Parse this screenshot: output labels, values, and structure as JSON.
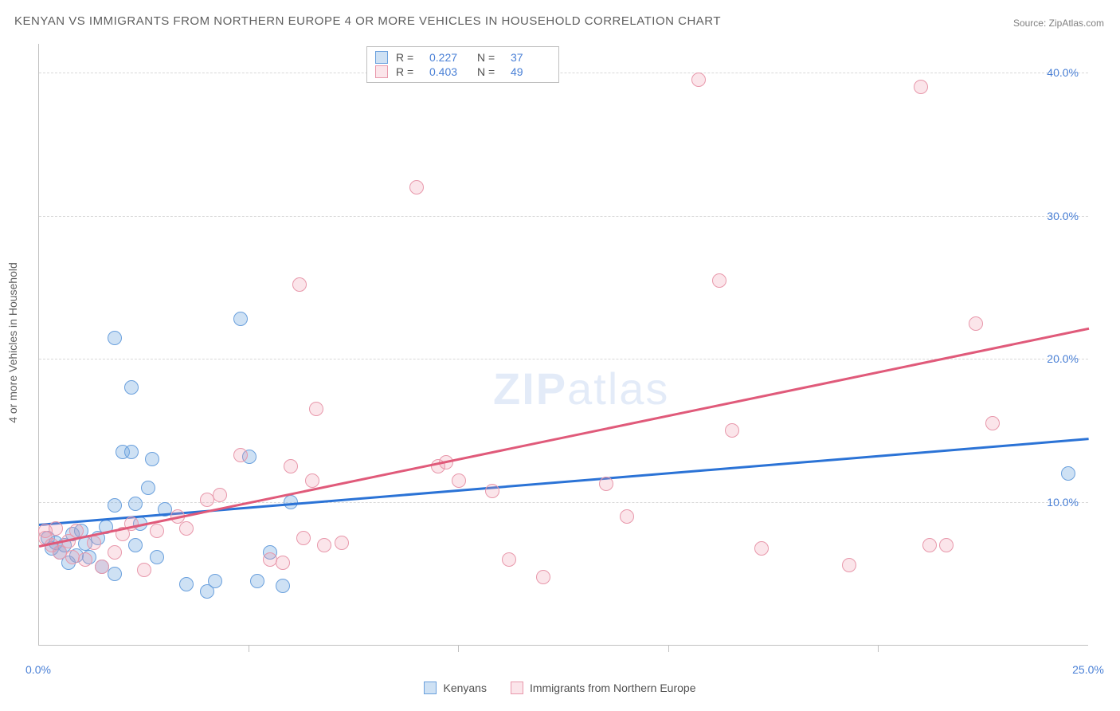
{
  "title": "KENYAN VS IMMIGRANTS FROM NORTHERN EUROPE 4 OR MORE VEHICLES IN HOUSEHOLD CORRELATION CHART",
  "source": "Source: ZipAtlas.com",
  "ylabel": "4 or more Vehicles in Household",
  "watermark_a": "ZIP",
  "watermark_b": "atlas",
  "colors": {
    "blue_fill": "rgba(116,168,224,0.35)",
    "blue_stroke": "#6aa0dd",
    "pink_fill": "rgba(240,150,170,0.25)",
    "pink_stroke": "#e898ab",
    "blue_line": "#2b73d6",
    "pink_line": "#e05a7a",
    "tick_text": "#4a80d6"
  },
  "chart": {
    "xlim": [
      0,
      25
    ],
    "ylim": [
      0,
      42
    ],
    "yticks": [
      {
        "v": 10,
        "label": "10.0%"
      },
      {
        "v": 20,
        "label": "20.0%"
      },
      {
        "v": 30,
        "label": "30.0%"
      },
      {
        "v": 40,
        "label": "40.0%"
      }
    ],
    "xticks_major": [
      {
        "v": 0,
        "label": "0.0%"
      },
      {
        "v": 25,
        "label": "25.0%"
      }
    ],
    "xtick_marks": [
      5,
      10,
      15,
      20
    ],
    "grid_color": "#d8d8d8"
  },
  "series": [
    {
      "name": "Kenyans",
      "color_fill_key": "blue_fill",
      "color_stroke_key": "blue_stroke",
      "R": "0.227",
      "N": "37",
      "trend": {
        "x1": 0,
        "y1": 8.5,
        "x2": 25,
        "y2": 14.5,
        "color_key": "blue_line"
      },
      "points": [
        [
          0.2,
          7.5
        ],
        [
          0.3,
          6.8
        ],
        [
          0.4,
          7.2
        ],
        [
          0.5,
          6.5
        ],
        [
          0.6,
          7.0
        ],
        [
          0.7,
          5.8
        ],
        [
          0.8,
          7.8
        ],
        [
          0.9,
          6.3
        ],
        [
          1.0,
          8.0
        ],
        [
          1.1,
          7.1
        ],
        [
          1.2,
          6.2
        ],
        [
          1.4,
          7.5
        ],
        [
          1.5,
          5.5
        ],
        [
          1.6,
          8.3
        ],
        [
          1.8,
          5.0
        ],
        [
          1.8,
          9.8
        ],
        [
          1.8,
          21.5
        ],
        [
          2.0,
          13.5
        ],
        [
          2.2,
          18.0
        ],
        [
          2.2,
          13.5
        ],
        [
          2.3,
          9.9
        ],
        [
          2.3,
          7.0
        ],
        [
          2.4,
          8.5
        ],
        [
          2.6,
          11.0
        ],
        [
          2.7,
          13.0
        ],
        [
          2.8,
          6.2
        ],
        [
          3.0,
          9.5
        ],
        [
          3.5,
          4.3
        ],
        [
          4.0,
          3.8
        ],
        [
          4.2,
          4.5
        ],
        [
          4.8,
          22.8
        ],
        [
          5.0,
          13.2
        ],
        [
          5.2,
          4.5
        ],
        [
          5.5,
          6.5
        ],
        [
          5.8,
          4.2
        ],
        [
          6.0,
          10.0
        ],
        [
          24.5,
          12.0
        ]
      ]
    },
    {
      "name": "Immigrants from Northern Europe",
      "color_fill_key": "pink_fill",
      "color_stroke_key": "pink_stroke",
      "R": "0.403",
      "N": "49",
      "trend": {
        "x1": 0,
        "y1": 7.0,
        "x2": 25,
        "y2": 22.2,
        "color_key": "pink_line"
      },
      "points": [
        [
          0.15,
          7.5
        ],
        [
          0.15,
          8.0
        ],
        [
          0.3,
          7.0
        ],
        [
          0.4,
          8.2
        ],
        [
          0.5,
          6.5
        ],
        [
          0.7,
          7.3
        ],
        [
          0.8,
          6.2
        ],
        [
          0.9,
          8.0
        ],
        [
          1.1,
          6.0
        ],
        [
          1.3,
          7.2
        ],
        [
          1.5,
          5.5
        ],
        [
          1.8,
          6.5
        ],
        [
          2.0,
          7.8
        ],
        [
          2.2,
          8.5
        ],
        [
          2.5,
          5.3
        ],
        [
          2.8,
          8.0
        ],
        [
          3.3,
          9.0
        ],
        [
          3.5,
          8.2
        ],
        [
          4.0,
          10.2
        ],
        [
          4.3,
          10.5
        ],
        [
          4.8,
          13.3
        ],
        [
          5.5,
          6.0
        ],
        [
          5.8,
          5.8
        ],
        [
          6.0,
          12.5
        ],
        [
          6.2,
          25.2
        ],
        [
          6.3,
          7.5
        ],
        [
          6.5,
          11.5
        ],
        [
          6.6,
          16.5
        ],
        [
          6.8,
          7.0
        ],
        [
          7.2,
          7.2
        ],
        [
          9.0,
          32.0
        ],
        [
          9.5,
          12.5
        ],
        [
          9.7,
          12.8
        ],
        [
          10.0,
          11.5
        ],
        [
          10.8,
          10.8
        ],
        [
          11.2,
          6.0
        ],
        [
          12.0,
          4.8
        ],
        [
          13.5,
          11.3
        ],
        [
          14.0,
          9.0
        ],
        [
          15.7,
          39.5
        ],
        [
          16.2,
          25.5
        ],
        [
          16.5,
          15.0
        ],
        [
          17.2,
          6.8
        ],
        [
          19.3,
          5.6
        ],
        [
          21.0,
          39.0
        ],
        [
          21.2,
          7.0
        ],
        [
          21.6,
          7.0
        ],
        [
          22.3,
          22.5
        ],
        [
          22.7,
          15.5
        ]
      ]
    }
  ],
  "bottom_legend": [
    {
      "swatch": "blue",
      "label": "Kenyans"
    },
    {
      "swatch": "pink",
      "label": "Immigrants from Northern Europe"
    }
  ]
}
